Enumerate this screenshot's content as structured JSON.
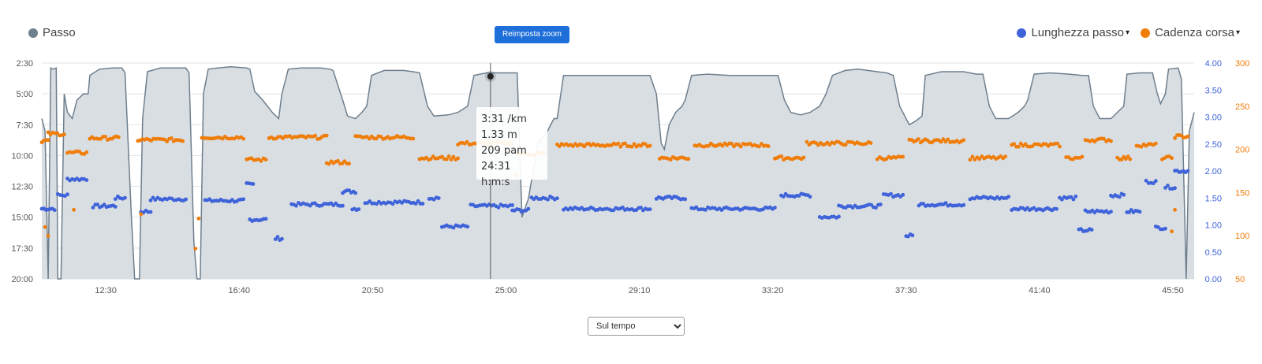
{
  "legend": {
    "pace_label": "Passo",
    "stride_label": "Lunghezza passo",
    "cadence_label": "Cadenza corsa",
    "caret": "▾"
  },
  "toolbar": {
    "reset_zoom_label": "Reimposta zoom"
  },
  "tooltip": {
    "pace": "3:31 /km",
    "stride": "1.33 m",
    "cadence": "209 pam",
    "time": "24:31 h:m:s"
  },
  "view_select": {
    "selected": "Sul tempo"
  },
  "colors": {
    "pace": "#6e7f8d",
    "pace_fill": "#d9dee3",
    "stride": "#3f63d9",
    "cadence": "#ef7d0a",
    "button": "#1e6fd9",
    "grid": "#dfe3e6"
  },
  "chart_data": {
    "type": "area",
    "x_unit": "m:ss",
    "x_range": [
      "10:30",
      "46:50"
    ],
    "x_ticks": [
      "12:30",
      "16:40",
      "20:50",
      "25:00",
      "29:10",
      "33:20",
      "37:30",
      "41:40",
      "45:50"
    ],
    "axes": {
      "pace": {
        "ticks": [
          "2:30",
          "5:00",
          "7:30",
          "10:00",
          "12:30",
          "15:00",
          "17:30",
          "20:00"
        ],
        "range_min_per_km": [
          2.5,
          20
        ],
        "reversed": true
      },
      "stride": {
        "ticks": [
          "4.00",
          "3.50",
          "3.00",
          "2.50",
          "2.00",
          "1.50",
          "1.00",
          "0.50",
          "0.00"
        ],
        "range": [
          0,
          4
        ]
      },
      "cadence": {
        "ticks": [
          "300",
          "250",
          "200",
          "150",
          "100",
          "50"
        ],
        "range": [
          50,
          300
        ]
      }
    },
    "crosshair_time": "24:31",
    "series": [
      {
        "name": "Passo",
        "type": "area",
        "points": [
          [
            10.5,
            7.0
          ],
          [
            10.6,
            8.0
          ],
          [
            10.7,
            20.0
          ],
          [
            10.78,
            2.9
          ],
          [
            10.85,
            3.0
          ],
          [
            10.95,
            2.9
          ],
          [
            11.0,
            20.0
          ],
          [
            11.1,
            20.0
          ],
          [
            11.2,
            5.0
          ],
          [
            11.3,
            6.5
          ],
          [
            11.45,
            7.0
          ],
          [
            11.6,
            5.5
          ],
          [
            11.8,
            5.0
          ],
          [
            11.95,
            5.0
          ],
          [
            12.0,
            3.5
          ],
          [
            12.3,
            3.0
          ],
          [
            12.7,
            2.9
          ],
          [
            13.0,
            2.9
          ],
          [
            13.1,
            3.3
          ],
          [
            13.3,
            15.0
          ],
          [
            13.4,
            20.0
          ],
          [
            13.55,
            20.0
          ],
          [
            13.65,
            7.0
          ],
          [
            13.8,
            3.2
          ],
          [
            14.2,
            2.9
          ],
          [
            14.7,
            2.9
          ],
          [
            15.0,
            2.9
          ],
          [
            15.1,
            3.3
          ],
          [
            15.25,
            17.0
          ],
          [
            15.35,
            20.0
          ],
          [
            15.45,
            20.0
          ],
          [
            15.55,
            5.0
          ],
          [
            15.7,
            3.0
          ],
          [
            16.0,
            2.9
          ],
          [
            16.4,
            2.8
          ],
          [
            16.9,
            2.9
          ],
          [
            17.0,
            3.0
          ],
          [
            17.15,
            4.8
          ],
          [
            17.4,
            5.5
          ],
          [
            17.7,
            6.5
          ],
          [
            17.9,
            7.0
          ],
          [
            18.0,
            5.0
          ],
          [
            18.2,
            3.0
          ],
          [
            18.6,
            2.9
          ],
          [
            19.2,
            2.9
          ],
          [
            19.5,
            3.0
          ],
          [
            19.6,
            3.1
          ],
          [
            19.9,
            5.5
          ],
          [
            20.05,
            6.8
          ],
          [
            20.3,
            7.0
          ],
          [
            20.5,
            6.5
          ],
          [
            20.65,
            6.0
          ],
          [
            20.8,
            3.5
          ],
          [
            21.2,
            3.1
          ],
          [
            21.8,
            3.1
          ],
          [
            22.1,
            3.2
          ],
          [
            22.3,
            3.3
          ],
          [
            22.55,
            6.0
          ],
          [
            22.75,
            6.8
          ],
          [
            23.2,
            6.7
          ],
          [
            23.5,
            6.5
          ],
          [
            23.8,
            6.0
          ],
          [
            24.0,
            3.5
          ],
          [
            24.4,
            3.3
          ],
          [
            24.9,
            3.3
          ],
          [
            25.2,
            3.3
          ],
          [
            25.35,
            3.3
          ],
          [
            25.5,
            15.0
          ],
          [
            25.7,
            13.5
          ],
          [
            26.0,
            9.0
          ],
          [
            26.3,
            8.0
          ],
          [
            26.5,
            7.0
          ],
          [
            26.6,
            7.0
          ],
          [
            26.8,
            3.5
          ],
          [
            27.3,
            3.5
          ],
          [
            28.0,
            3.5
          ],
          [
            28.8,
            3.5
          ],
          [
            29.3,
            3.5
          ],
          [
            29.5,
            3.5
          ],
          [
            29.7,
            5.0
          ],
          [
            29.85,
            9.0
          ],
          [
            29.95,
            9.5
          ],
          [
            30.1,
            7.5
          ],
          [
            30.3,
            6.5
          ],
          [
            30.5,
            6.0
          ],
          [
            30.6,
            5.5
          ],
          [
            30.8,
            3.5
          ],
          [
            31.3,
            3.4
          ],
          [
            32.0,
            3.5
          ],
          [
            32.8,
            3.5
          ],
          [
            33.3,
            3.5
          ],
          [
            33.5,
            3.5
          ],
          [
            33.7,
            5.5
          ],
          [
            33.9,
            6.5
          ],
          [
            34.2,
            6.7
          ],
          [
            34.5,
            6.5
          ],
          [
            34.8,
            6.0
          ],
          [
            35.0,
            5.0
          ],
          [
            35.2,
            3.5
          ],
          [
            35.6,
            3.1
          ],
          [
            36.0,
            3.0
          ],
          [
            36.6,
            3.2
          ],
          [
            36.9,
            3.3
          ],
          [
            37.1,
            3.5
          ],
          [
            37.3,
            6.0
          ],
          [
            37.6,
            7.5
          ],
          [
            37.8,
            7.2
          ],
          [
            38.0,
            6.8
          ],
          [
            38.1,
            3.5
          ],
          [
            38.6,
            3.2
          ],
          [
            39.3,
            3.2
          ],
          [
            39.7,
            3.4
          ],
          [
            39.9,
            3.4
          ],
          [
            40.1,
            6.0
          ],
          [
            40.3,
            7.0
          ],
          [
            40.7,
            7.0
          ],
          [
            41.0,
            6.5
          ],
          [
            41.2,
            6.0
          ],
          [
            41.3,
            5.5
          ],
          [
            41.5,
            3.4
          ],
          [
            42.0,
            3.3
          ],
          [
            42.6,
            3.4
          ],
          [
            43.0,
            3.5
          ],
          [
            43.2,
            3.5
          ],
          [
            43.35,
            6.0
          ],
          [
            43.55,
            7.0
          ],
          [
            43.9,
            7.0
          ],
          [
            44.1,
            6.5
          ],
          [
            44.3,
            6.0
          ],
          [
            44.4,
            3.4
          ],
          [
            44.8,
            3.3
          ],
          [
            45.2,
            3.3
          ],
          [
            45.35,
            5.0
          ],
          [
            45.45,
            5.8
          ],
          [
            45.6,
            5.0
          ],
          [
            45.7,
            3.0
          ],
          [
            46.0,
            2.9
          ],
          [
            46.1,
            3.8
          ],
          [
            46.25,
            20.0
          ],
          [
            46.35,
            8.0
          ],
          [
            46.5,
            6.5
          ]
        ]
      },
      {
        "name": "Lunghezza passo",
        "type": "scatter",
        "segments": [
          {
            "t": [
              10.5,
              10.9
            ],
            "v": 1.3
          },
          {
            "t": [
              11.0,
              11.3
            ],
            "v": 1.55
          },
          {
            "t": [
              11.3,
              11.9
            ],
            "v": 1.85
          },
          {
            "t": [
              12.1,
              12.8
            ],
            "v": 1.35
          },
          {
            "t": [
              12.8,
              13.1
            ],
            "v": 1.5
          },
          {
            "t": [
              13.6,
              13.9
            ],
            "v": 1.25
          },
          {
            "t": [
              13.9,
              15.0
            ],
            "v": 1.48
          },
          {
            "t": [
              15.6,
              16.8
            ],
            "v": 1.45
          },
          {
            "t": [
              16.9,
              17.1
            ],
            "v": 1.75
          },
          {
            "t": [
              17.0,
              17.5
            ],
            "v": 1.1
          },
          {
            "t": [
              17.8,
              18.0
            ],
            "v": 0.75
          },
          {
            "t": [
              18.3,
              19.9
            ],
            "v": 1.38
          },
          {
            "t": [
              19.9,
              20.3
            ],
            "v": 1.62
          },
          {
            "t": [
              20.2,
              20.4
            ],
            "v": 1.3
          },
          {
            "t": [
              20.6,
              22.4
            ],
            "v": 1.42
          },
          {
            "t": [
              22.6,
              22.9
            ],
            "v": 1.5
          },
          {
            "t": [
              23.0,
              23.8
            ],
            "v": 0.97
          },
          {
            "t": [
              23.9,
              25.2
            ],
            "v": 1.35
          },
          {
            "t": [
              25.2,
              25.7
            ],
            "v": 1.27
          },
          {
            "t": [
              25.8,
              26.6
            ],
            "v": 1.5
          },
          {
            "t": [
              26.8,
              29.5
            ],
            "v": 1.3
          },
          {
            "t": [
              29.7,
              30.6
            ],
            "v": 1.5
          },
          {
            "t": [
              30.8,
              33.4
            ],
            "v": 1.3
          },
          {
            "t": [
              33.6,
              34.5
            ],
            "v": 1.55
          },
          {
            "t": [
              34.8,
              35.4
            ],
            "v": 1.15
          },
          {
            "t": [
              35.4,
              36.7
            ],
            "v": 1.35
          },
          {
            "t": [
              36.8,
              37.4
            ],
            "v": 1.55
          },
          {
            "t": [
              37.5,
              37.7
            ],
            "v": 0.8
          },
          {
            "t": [
              37.9,
              39.3
            ],
            "v": 1.38
          },
          {
            "t": [
              39.5,
              40.7
            ],
            "v": 1.5
          },
          {
            "t": [
              40.8,
              42.2
            ],
            "v": 1.3
          },
          {
            "t": [
              42.3,
              42.8
            ],
            "v": 1.5
          },
          {
            "t": [
              42.9,
              43.3
            ],
            "v": 0.9
          },
          {
            "t": [
              43.1,
              43.9
            ],
            "v": 1.25
          },
          {
            "t": [
              43.9,
              44.3
            ],
            "v": 1.55
          },
          {
            "t": [
              44.4,
              44.8
            ],
            "v": 1.25
          },
          {
            "t": [
              45.0,
              45.3
            ],
            "v": 1.8
          },
          {
            "t": [
              45.3,
              45.6
            ],
            "v": 0.95
          },
          {
            "t": [
              45.6,
              45.9
            ],
            "v": 1.7
          },
          {
            "t": [
              45.9,
              46.3
            ],
            "v": 2.0
          }
        ]
      },
      {
        "name": "Cadenza corsa",
        "type": "scatter",
        "segments": [
          {
            "t": [
              10.5,
              10.7
            ],
            "v": 210
          },
          {
            "t": [
              10.7,
              11.2
            ],
            "v": 218
          },
          {
            "t": [
              11.3,
              11.9
            ],
            "v": 196
          },
          {
            "t": [
              12.0,
              12.9
            ],
            "v": 213
          },
          {
            "t": [
              13.5,
              14.9
            ],
            "v": 211
          },
          {
            "t": [
              15.5,
              16.8
            ],
            "v": 214
          },
          {
            "t": [
              16.9,
              17.5
            ],
            "v": 188
          },
          {
            "t": [
              17.6,
              19.4
            ],
            "v": 214
          },
          {
            "t": [
              19.4,
              20.1
            ],
            "v": 185
          },
          {
            "t": [
              20.3,
              22.1
            ],
            "v": 214
          },
          {
            "t": [
              22.3,
              23.5
            ],
            "v": 190
          },
          {
            "t": [
              23.5,
              25.2
            ],
            "v": 207
          },
          {
            "t": [
              25.4,
              26.2
            ],
            "v": 195
          },
          {
            "t": [
              26.6,
              29.5
            ],
            "v": 205
          },
          {
            "t": [
              29.8,
              30.7
            ],
            "v": 190
          },
          {
            "t": [
              30.9,
              33.2
            ],
            "v": 205
          },
          {
            "t": [
              33.4,
              34.3
            ],
            "v": 190
          },
          {
            "t": [
              34.4,
              36.4
            ],
            "v": 207
          },
          {
            "t": [
              36.6,
              37.4
            ],
            "v": 190
          },
          {
            "t": [
              37.6,
              39.3
            ],
            "v": 210
          },
          {
            "t": [
              39.5,
              40.6
            ],
            "v": 190
          },
          {
            "t": [
              40.8,
              42.3
            ],
            "v": 205
          },
          {
            "t": [
              42.5,
              43.0
            ],
            "v": 190
          },
          {
            "t": [
              43.1,
              43.9
            ],
            "v": 211
          },
          {
            "t": [
              44.1,
              44.5
            ],
            "v": 190
          },
          {
            "t": [
              44.7,
              45.3
            ],
            "v": 205
          },
          {
            "t": [
              45.5,
              45.8
            ],
            "v": 190
          },
          {
            "t": [
              45.9,
              46.3
            ],
            "v": 215
          }
        ],
        "outliers": [
          [
            10.6,
            110
          ],
          [
            10.7,
            100
          ],
          [
            11.5,
            130
          ],
          [
            13.6,
            125
          ],
          [
            15.3,
            85
          ],
          [
            15.4,
            120
          ],
          [
            25.3,
            170
          ],
          [
            45.8,
            105
          ],
          [
            45.9,
            130
          ]
        ]
      }
    ]
  }
}
